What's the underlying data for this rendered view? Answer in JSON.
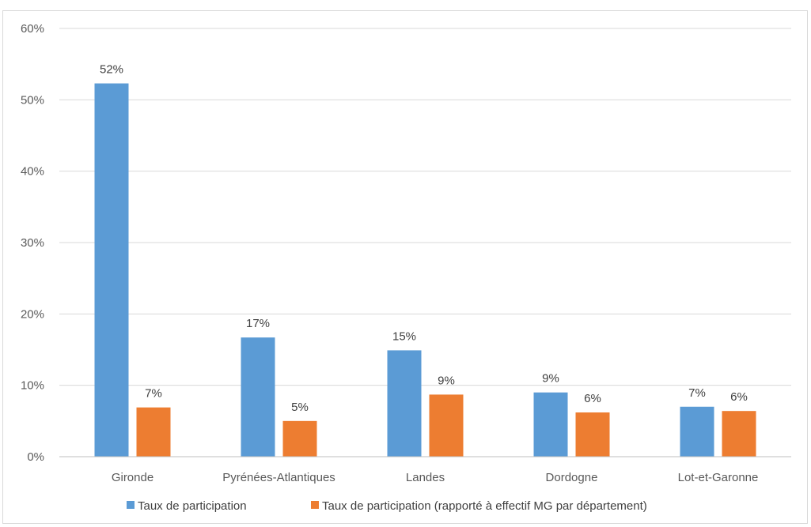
{
  "chart_data": {
    "type": "bar",
    "categories": [
      "Gironde",
      "Pyrénées-Atlantiques",
      "Landes",
      "Dordogne",
      "Lot-et-Garonne"
    ],
    "series": [
      {
        "name": "Taux de participation",
        "color": "#5b9bd5",
        "values": [
          0.523,
          0.167,
          0.149,
          0.09,
          0.07
        ],
        "labels": [
          "52%",
          "17%",
          "15%",
          "9%",
          "7%"
        ]
      },
      {
        "name": "Taux de participation (rapporté à effectif MG par département)",
        "color": "#ed7d31",
        "values": [
          0.069,
          0.05,
          0.087,
          0.062,
          0.064
        ],
        "labels": [
          "7%",
          "5%",
          "9%",
          "6%",
          "6%"
        ]
      }
    ],
    "ylim": [
      0,
      0.6
    ],
    "yticks": [
      0,
      0.1,
      0.2,
      0.3,
      0.4,
      0.5,
      0.6
    ],
    "ytick_labels": [
      "0%",
      "10%",
      "20%",
      "30%",
      "40%",
      "50%",
      "60%"
    ],
    "grid": true,
    "legend_position": "bottom",
    "gridline_color": "#d9d9d9"
  }
}
